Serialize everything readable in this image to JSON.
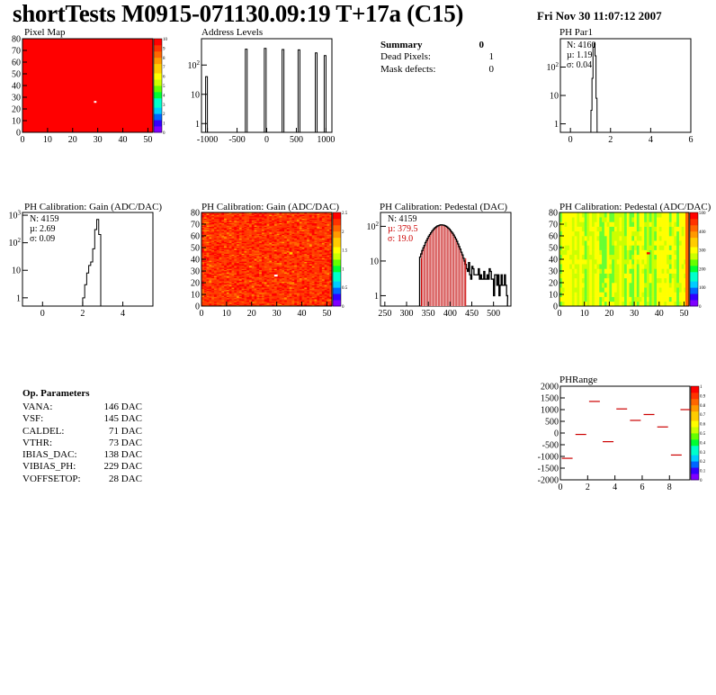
{
  "header": {
    "title": "shortTests M0915-071130.09:19 T+17a (C15)",
    "datetime": "Fri Nov 30 11:07:12 2007"
  },
  "summary": {
    "title": "Summary",
    "count": "0",
    "rows": [
      {
        "label": "Dead Pixels:",
        "value": "1"
      },
      {
        "label": "Mask defects:",
        "value": "0"
      }
    ]
  },
  "op_params": {
    "title": "Op. Parameters",
    "rows": [
      {
        "label": "VANA:",
        "value": "146 DAC"
      },
      {
        "label": "VSF:",
        "value": "145 DAC"
      },
      {
        "label": "CALDEL:",
        "value": "71 DAC"
      },
      {
        "label": "VTHR:",
        "value": "73 DAC"
      },
      {
        "label": "IBIAS_DAC:",
        "value": "138 DAC"
      },
      {
        "label": "VIBIAS_PH:",
        "value": "229 DAC"
      },
      {
        "label": "VOFFSETOP:",
        "value": "28 DAC"
      }
    ]
  },
  "chart_data": [
    {
      "id": "pixel-map",
      "type": "heatmap",
      "title": "Pixel Map",
      "xlim": [
        0,
        52
      ],
      "ylim": [
        0,
        80
      ],
      "xticks": [
        "0",
        "10",
        "20",
        "30",
        "40",
        "50"
      ],
      "yticks": [
        "0",
        "10",
        "20",
        "30",
        "40",
        "50",
        "60",
        "70",
        "80"
      ],
      "fill_value": 10,
      "special_pixels": [
        {
          "x": 29,
          "y": 26,
          "value": 0
        }
      ],
      "zlim": [
        0,
        10
      ],
      "zticks": [
        "0",
        "1",
        "2",
        "3",
        "4",
        "5",
        "6",
        "7",
        "8",
        "9",
        "10"
      ]
    },
    {
      "id": "address-levels",
      "type": "bar",
      "title": "Address Levels",
      "xlim": [
        -1100,
        1100
      ],
      "xticks": [
        "-1000",
        "-500",
        "0",
        "500",
        "1000"
      ],
      "ylog": true,
      "yticks": [
        "1",
        "10",
        "10^2"
      ],
      "peaks": [
        {
          "x": -1000,
          "y": 40
        },
        {
          "x": -330,
          "y": 350
        },
        {
          "x": -10,
          "y": 370
        },
        {
          "x": 290,
          "y": 340
        },
        {
          "x": 560,
          "y": 330
        },
        {
          "x": 850,
          "y": 260
        },
        {
          "x": 1000,
          "y": 210
        }
      ]
    },
    {
      "id": "ph-par1",
      "type": "bar",
      "title": "PH Par1",
      "xlim": [
        -0.5,
        6
      ],
      "ylog": true,
      "xticks": [
        "0",
        "2",
        "4",
        "6"
      ],
      "yticks": [
        "1",
        "10",
        "10^2"
      ],
      "stats": {
        "n": "N: 4160",
        "mean": "µ: 1.19",
        "sigma": "σ: 0.04"
      },
      "bins": [
        {
          "x": 1.05,
          "y": 3
        },
        {
          "x": 1.1,
          "y": 40
        },
        {
          "x": 1.15,
          "y": 500
        },
        {
          "x": 1.2,
          "y": 700
        },
        {
          "x": 1.25,
          "y": 250
        },
        {
          "x": 1.3,
          "y": 8
        }
      ]
    },
    {
      "id": "ph-cal-gain-hist",
      "type": "bar",
      "title": "PH Calibration: Gain (ADC/DAC)",
      "xlim": [
        -1,
        5.5
      ],
      "ylog": true,
      "xticks": [
        "0",
        "2",
        "4"
      ],
      "yticks": [
        "1",
        "10",
        "10^2",
        "10^3"
      ],
      "stats": {
        "n": "N: 4159",
        "mean": "µ: 2.69",
        "sigma": "σ: 0.09"
      },
      "bins": [
        {
          "x": 2.05,
          "y": 1
        },
        {
          "x": 2.15,
          "y": 3
        },
        {
          "x": 2.25,
          "y": 8
        },
        {
          "x": 2.35,
          "y": 15
        },
        {
          "x": 2.45,
          "y": 20
        },
        {
          "x": 2.55,
          "y": 60
        },
        {
          "x": 2.65,
          "y": 300
        },
        {
          "x": 2.75,
          "y": 700
        },
        {
          "x": 2.85,
          "y": 200
        }
      ]
    },
    {
      "id": "ph-cal-gain-map",
      "type": "heatmap",
      "title": "PH Calibration: Gain (ADC/DAC)",
      "xlim": [
        0,
        52
      ],
      "ylim": [
        0,
        80
      ],
      "xticks": [
        "0",
        "10",
        "20",
        "30",
        "40",
        "50"
      ],
      "yticks": [
        "0",
        "10",
        "20",
        "30",
        "40",
        "50",
        "60",
        "70",
        "80"
      ],
      "zticks": [
        "0",
        "0.5",
        "1",
        "1.5",
        "2",
        "2.5"
      ]
    },
    {
      "id": "ph-cal-pedestal-hist",
      "type": "bar",
      "title": "PH Calibration: Pedestal (DAC)",
      "xlim": [
        240,
        540
      ],
      "ylog": true,
      "xticks": [
        "250",
        "300",
        "350",
        "400",
        "450",
        "500"
      ],
      "yticks": [
        "1",
        "10",
        "10^2"
      ],
      "stats": {
        "n": "N: 4159",
        "mean": "µ: 379.5",
        "sigma": "σ: 19.0"
      },
      "cut_lines": [
        334,
        436
      ],
      "fit_range": [
        334,
        436
      ]
    },
    {
      "id": "ph-cal-pedestal-map",
      "type": "heatmap",
      "title": "PH Calibration: Pedestal (ADC/DAC)",
      "xlim": [
        0,
        52
      ],
      "ylim": [
        0,
        80
      ],
      "xticks": [
        "0",
        "10",
        "20",
        "30",
        "40",
        "50"
      ],
      "yticks": [
        "0",
        "10",
        "20",
        "30",
        "40",
        "50",
        "60",
        "70",
        "80"
      ],
      "zticks": [
        "0",
        "100",
        "200",
        "300",
        "400",
        "500"
      ]
    },
    {
      "id": "ph-range",
      "type": "scatter",
      "title": "PHRange",
      "xlim": [
        0,
        9.5
      ],
      "ylim": [
        -2000,
        2000
      ],
      "xticks": [
        "0",
        "2",
        "4",
        "6",
        "8"
      ],
      "yticks": [
        "2000",
        "1500",
        "1000",
        "500",
        "0",
        "-500",
        "-1000",
        "-1500",
        "-2000"
      ],
      "points": [
        {
          "x": 0.5,
          "y": -1080
        },
        {
          "x": 1.5,
          "y": -60
        },
        {
          "x": 2.5,
          "y": 1350
        },
        {
          "x": 3.5,
          "y": -370
        },
        {
          "x": 4.5,
          "y": 1030
        },
        {
          "x": 5.5,
          "y": 540
        },
        {
          "x": 6.5,
          "y": 790
        },
        {
          "x": 7.5,
          "y": 260
        },
        {
          "x": 8.5,
          "y": -940
        },
        {
          "x": 9.2,
          "y": 1000
        }
      ],
      "zticks": [
        "0",
        "0.1",
        "0.2",
        "0.3",
        "0.4",
        "0.5",
        "0.6",
        "0.7",
        "0.8",
        "0.9",
        "1"
      ]
    }
  ]
}
